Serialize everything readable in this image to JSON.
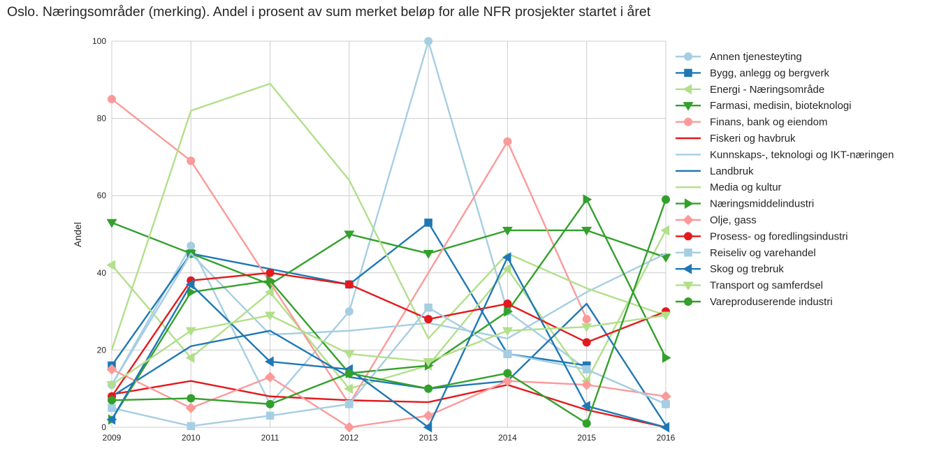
{
  "chart_data": {
    "type": "line",
    "title": "Oslo. Næringsområder (merking). Andel i prosent av sum merket beløp for alle NFR prosjekter startet i året",
    "xlabel": "",
    "ylabel": "Andel",
    "x": [
      2009,
      2010,
      2011,
      2012,
      2013,
      2014,
      2015,
      2016
    ],
    "x_ticks": [
      "2009",
      "2010",
      "2011",
      "2012",
      "2013",
      "2014",
      "2015",
      "2016"
    ],
    "y_ticks": [
      "0",
      "20",
      "40",
      "60",
      "80",
      "100"
    ],
    "ylim": [
      0,
      100
    ],
    "xlim": [
      2009,
      2016
    ],
    "grid": true,
    "legend_position": "right",
    "series": [
      {
        "name": "Annen tjenesteyting",
        "color": "#a6cee3",
        "marker": "circle",
        "values": [
          11,
          47,
          6,
          30,
          100,
          30,
          15,
          6
        ]
      },
      {
        "name": "Bygg, anlegg og bergverk",
        "color": "#1f78b4",
        "marker": "square",
        "values": [
          16,
          45,
          null,
          37,
          53,
          19,
          16,
          null
        ]
      },
      {
        "name": "Energi - Næringsområde",
        "color": "#b2df8a",
        "marker": "triangle-left",
        "values": [
          42,
          18,
          35,
          10,
          16,
          41,
          12,
          51
        ]
      },
      {
        "name": "Farmasi, medisin, bioteknologi",
        "color": "#33a02c",
        "marker": "triangle-down",
        "values": [
          53,
          45,
          37,
          50,
          45,
          51,
          51,
          44
        ]
      },
      {
        "name": "Finans, bank og eiendom",
        "color": "#fb9a99",
        "marker": "circle",
        "values": [
          85,
          69,
          null,
          6,
          null,
          74,
          28,
          null
        ]
      },
      {
        "name": "Fiskeri og havbruk",
        "color": "#e31a1c",
        "marker": "none",
        "values": [
          8.5,
          12,
          8,
          7,
          6.5,
          11,
          4.5,
          0
        ]
      },
      {
        "name": "Kunnskaps-, teknologi og IKT-næringen",
        "color": "#a6cee3",
        "marker": "none",
        "values": [
          11,
          45,
          24,
          25,
          27,
          23,
          35,
          45
        ]
      },
      {
        "name": "Landbruk",
        "color": "#1f78b4",
        "marker": "none",
        "values": [
          8,
          21,
          25,
          13,
          10,
          12,
          32,
          0.5
        ]
      },
      {
        "name": "Media og kultur",
        "color": "#b2df8a",
        "marker": "none",
        "values": [
          20,
          82,
          89,
          64,
          23,
          45,
          36,
          29
        ]
      },
      {
        "name": "Næringsmiddelindustri",
        "color": "#33a02c",
        "marker": "triangle-right",
        "values": [
          2,
          35,
          38,
          14,
          16,
          30,
          59,
          18
        ]
      },
      {
        "name": "Olje, gass",
        "color": "#fb9a99",
        "marker": "diamond",
        "values": [
          15,
          5,
          13,
          0,
          3,
          12,
          11,
          8
        ]
      },
      {
        "name": "Prosess- og foredlingsindustri",
        "color": "#e31a1c",
        "marker": "circle",
        "values": [
          8,
          38,
          40,
          37,
          28,
          32,
          22,
          30
        ]
      },
      {
        "name": "Reiseliv og varehandel",
        "color": "#a6cee3",
        "marker": "square",
        "values": [
          5,
          0.3,
          3,
          6,
          31,
          19,
          15,
          6
        ]
      },
      {
        "name": "Skog og trebruk",
        "color": "#1f78b4",
        "marker": "triangle-left",
        "values": [
          2,
          37,
          17,
          15,
          0,
          44,
          5.5,
          0
        ]
      },
      {
        "name": "Transport og samferdsel",
        "color": "#b2df8a",
        "marker": "triangle-down",
        "values": [
          11,
          25,
          29,
          19,
          17,
          25,
          26,
          29
        ]
      },
      {
        "name": "Vareproduserende industri",
        "color": "#33a02c",
        "marker": "circle",
        "values": [
          7,
          7.5,
          6,
          14,
          10,
          14,
          1,
          59
        ]
      }
    ]
  }
}
